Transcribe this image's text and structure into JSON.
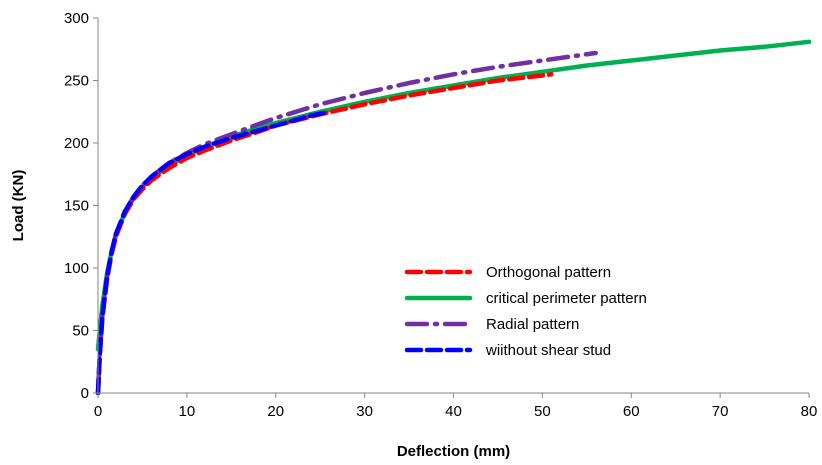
{
  "chart_data": {
    "type": "line",
    "title": "",
    "xlabel": "Deflection (mm)",
    "ylabel": "Load (KN)",
    "xlim": [
      0,
      80
    ],
    "ylim": [
      0,
      300
    ],
    "xticks": [
      0,
      10,
      20,
      30,
      40,
      50,
      60,
      70,
      80
    ],
    "yticks": [
      0,
      50,
      100,
      150,
      200,
      250,
      300
    ],
    "grid": false,
    "legend_position": "center-right",
    "series": [
      {
        "name": "Orthogonal pattern",
        "color": "#ff0000",
        "style": "dashed",
        "x": [
          0,
          0.2,
          0.5,
          1,
          1.5,
          2,
          3,
          4,
          5,
          6,
          8,
          10,
          12,
          15,
          18,
          20,
          25,
          30,
          35,
          40,
          45,
          50,
          51
        ],
        "y": [
          0,
          30,
          60,
          90,
          110,
          125,
          143,
          155,
          163,
          170,
          180,
          188,
          194,
          202,
          209,
          214,
          223,
          231,
          238,
          244,
          250,
          254,
          255
        ]
      },
      {
        "name": "critical perimeter pattern",
        "color": "#00b050",
        "style": "solid",
        "x": [
          0,
          0.2,
          0.5,
          1,
          1.5,
          2,
          3,
          4,
          5,
          6,
          8,
          10,
          12,
          15,
          18,
          20,
          25,
          30,
          35,
          40,
          45,
          50,
          55,
          60,
          65,
          70,
          75,
          80
        ],
        "y": [
          35,
          50,
          70,
          95,
          112,
          126,
          144,
          156,
          165,
          172,
          182,
          190,
          197,
          205,
          212,
          216,
          225,
          233,
          240,
          246,
          252,
          257,
          262,
          266,
          270,
          274,
          277,
          281
        ]
      },
      {
        "name": "Radial pattern",
        "color": "#7030a0",
        "style": "dash-dot",
        "x": [
          0,
          0.2,
          0.5,
          1,
          1.5,
          2,
          3,
          4,
          5,
          6,
          8,
          10,
          12,
          15,
          18,
          20,
          25,
          30,
          35,
          40,
          45,
          50,
          54,
          56
        ],
        "y": [
          0,
          32,
          62,
          92,
          112,
          127,
          145,
          157,
          166,
          173,
          184,
          192,
          199,
          207,
          215,
          220,
          231,
          240,
          248,
          255,
          261,
          266,
          270,
          272
        ]
      },
      {
        "name": "wiithout shear stud",
        "color": "#0000ff",
        "style": "dashed",
        "x": [
          0,
          0.2,
          0.5,
          1,
          1.5,
          2,
          3,
          4,
          5,
          6,
          8,
          10,
          12,
          15,
          18,
          20,
          22,
          24,
          26
        ],
        "y": [
          0,
          32,
          62,
          92,
          112,
          127,
          145,
          157,
          166,
          173,
          184,
          191,
          197,
          204,
          210,
          214,
          218,
          222,
          225
        ]
      }
    ]
  }
}
